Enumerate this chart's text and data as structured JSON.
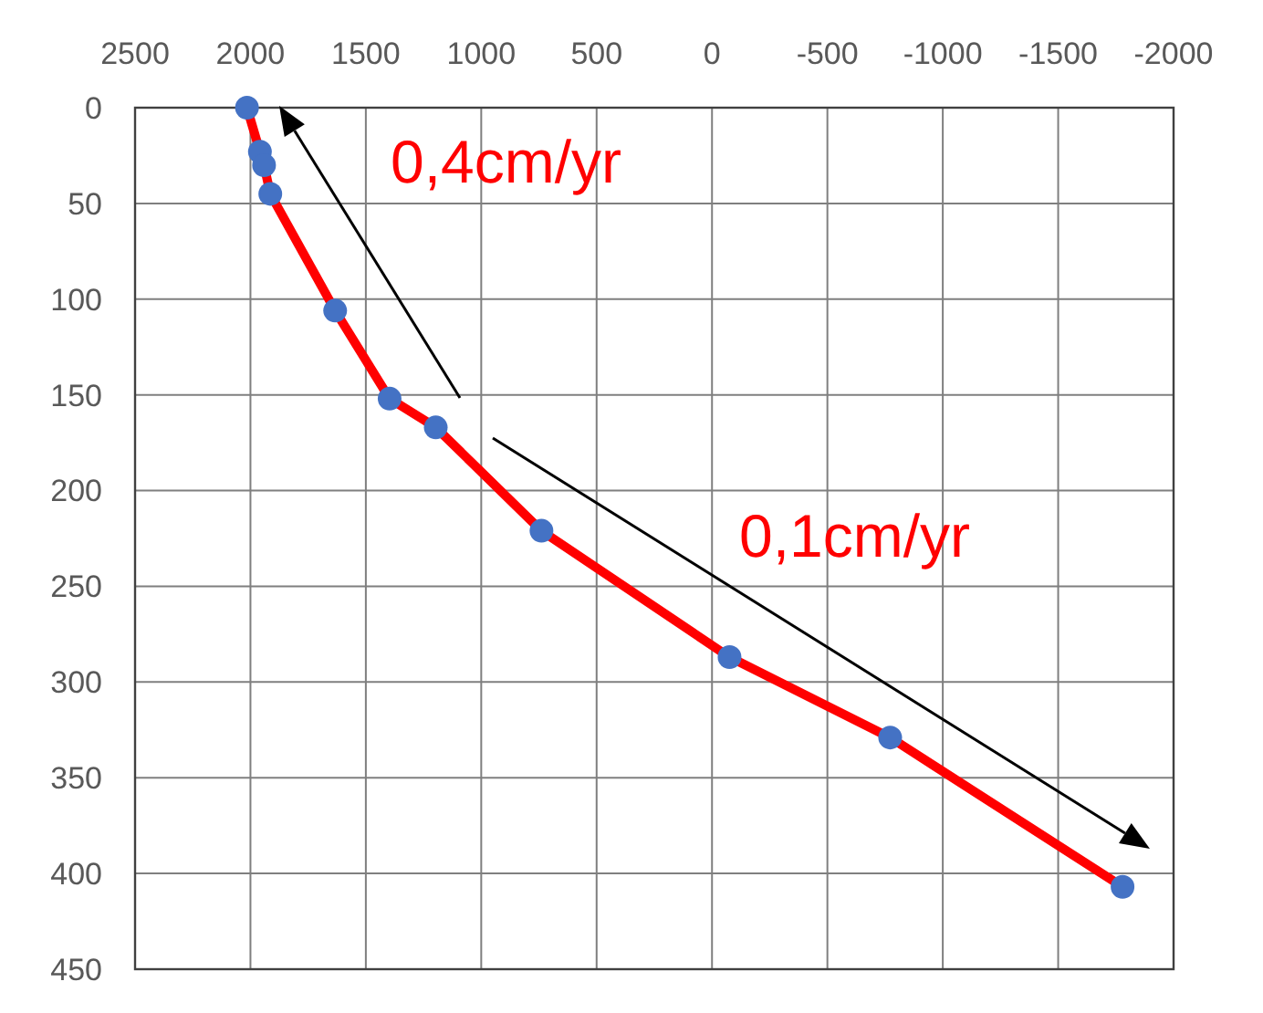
{
  "chart_data": {
    "type": "line",
    "x": [
      2015,
      1959,
      1941,
      1914,
      1633,
      1397,
      1197,
      739,
      -76,
      -772,
      -1779
    ],
    "series": [
      {
        "color": "#ff0000",
        "colors": [
          "#4472c4",
          "#4472c4",
          "#4472c4",
          "#4472c4",
          "#4472c4",
          "#4472c4",
          "#4472c4",
          "#4472c4",
          "#4472c4",
          "#4472c4",
          "#4472c4"
        ],
        "values": [
          0,
          23,
          30,
          45,
          106,
          152,
          167,
          221,
          287,
          329,
          407
        ]
      }
    ],
    "xlim": [
      2500,
      -2000
    ],
    "xticks": [
      2500,
      2000,
      1500,
      1000,
      500,
      0,
      -500,
      -1000,
      -1500,
      -2000
    ],
    "ylim": [
      450,
      0
    ],
    "yticks": [
      0,
      50,
      100,
      150,
      200,
      250,
      300,
      350,
      400,
      450
    ],
    "grid": true,
    "marker": "circle",
    "line_style": "solid",
    "annotations": [
      "0,4cm/yr",
      "0,1cm/yr"
    ]
  }
}
